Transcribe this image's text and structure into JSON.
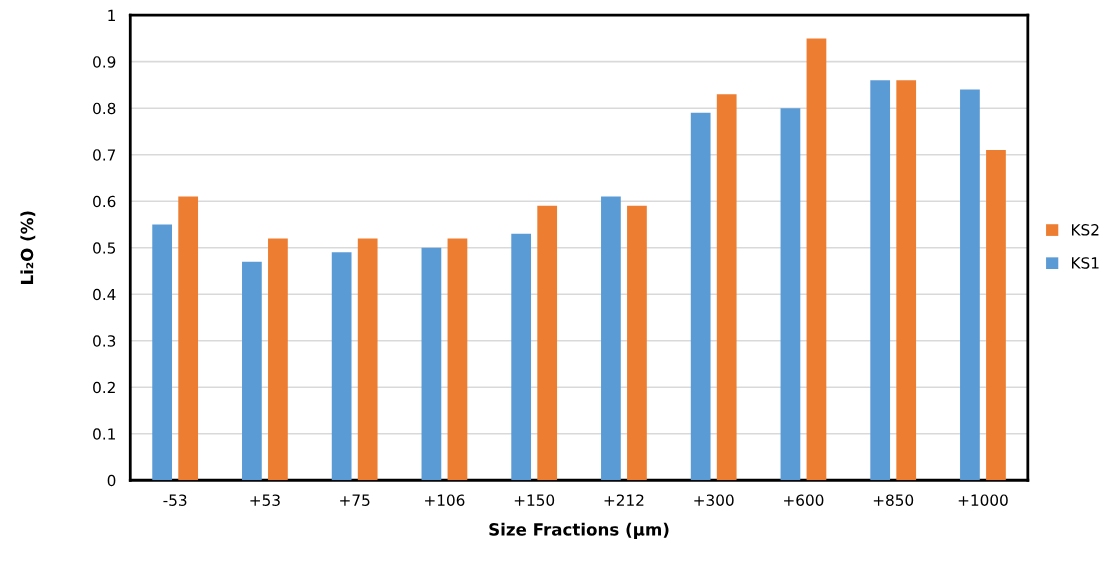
{
  "chart_data": {
    "type": "bar",
    "xlabel": "Size Fractions (µm)",
    "ylabel": "Li₂O (%)",
    "categories": [
      "-53",
      "+53",
      "+75",
      "+106",
      "+150",
      "+212",
      "+300",
      "+600",
      "+850",
      "+1000"
    ],
    "series": [
      {
        "name": "KS1",
        "color": "#5b9bd5",
        "values": [
          0.55,
          0.47,
          0.49,
          0.5,
          0.53,
          0.61,
          0.79,
          0.8,
          0.86,
          0.84
        ]
      },
      {
        "name": "KS2",
        "color": "#ed7d31",
        "values": [
          0.61,
          0.52,
          0.52,
          0.52,
          0.59,
          0.59,
          0.83,
          0.95,
          0.86,
          0.71
        ]
      }
    ],
    "ylim": [
      0,
      1
    ],
    "yticks": [
      0,
      0.1,
      0.2,
      0.3,
      0.4,
      0.5,
      0.6,
      0.7,
      0.8,
      0.9,
      1
    ],
    "grid": "y",
    "legend": "right"
  }
}
